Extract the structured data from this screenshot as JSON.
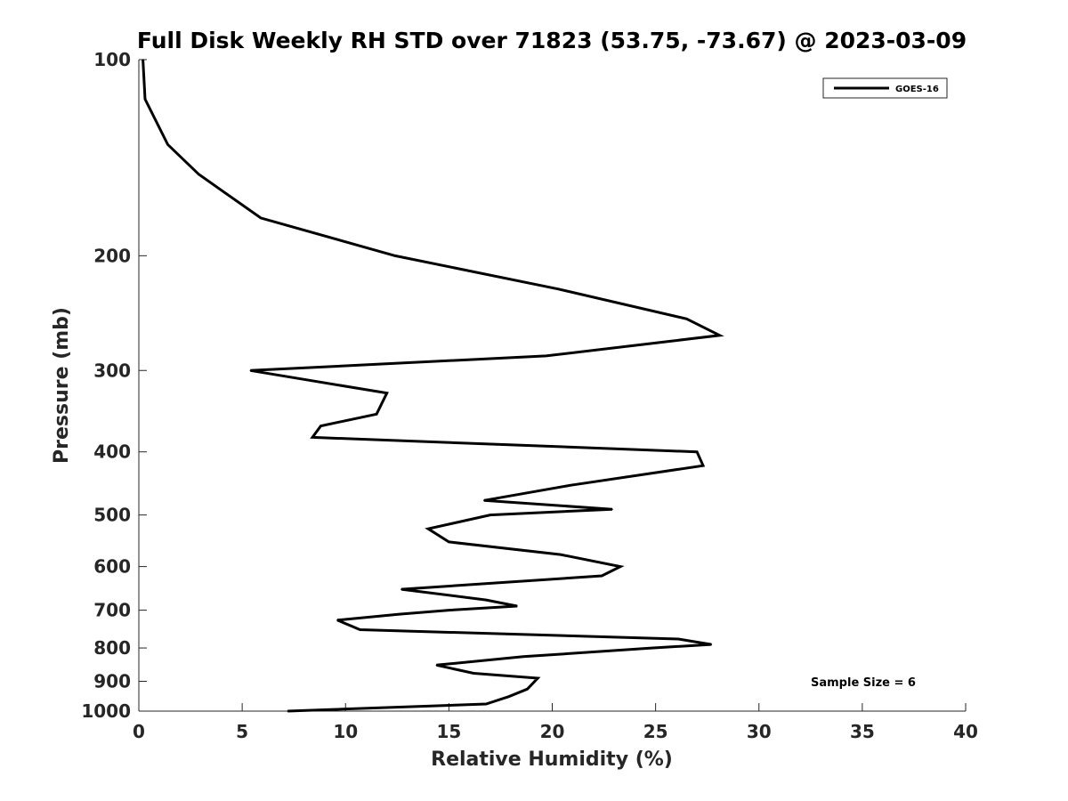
{
  "chart_data": {
    "type": "line",
    "title": "Full Disk Weekly RH STD over 71823 (53.75, -73.67) @ 2023-03-09",
    "xlabel": "Relative Humidity (%)",
    "ylabel": "Pressure (mb)",
    "xlim": [
      0,
      40
    ],
    "ylim": [
      100,
      1000
    ],
    "y_scale": "log",
    "y_reversed": true,
    "x_ticks": [
      0,
      5,
      10,
      15,
      20,
      25,
      30,
      35,
      40
    ],
    "y_ticks": [
      100,
      200,
      300,
      400,
      500,
      600,
      700,
      800,
      900,
      1000
    ],
    "grid": false,
    "legend_position": "top-right",
    "series": [
      {
        "name": "GOES-16",
        "color": "#000000",
        "x": [
          0.2,
          0.3,
          1.4,
          2.9,
          5.9,
          12.4,
          20.3,
          26.5,
          28.1,
          19.7,
          5.4,
          12.0,
          11.5,
          8.8,
          8.4,
          27.0,
          27.3,
          20.9,
          16.7,
          22.9,
          17.0,
          14.0,
          15.0,
          20.4,
          23.3,
          22.4,
          12.7,
          16.8,
          18.3,
          15.0,
          12.6,
          9.6,
          10.7,
          26.1,
          27.7,
          24.8,
          18.6,
          14.4,
          16.2,
          19.3,
          18.8,
          17.9,
          16.8,
          7.2
        ],
        "y": [
          100,
          115,
          135,
          150,
          175,
          200,
          225,
          250,
          265,
          285,
          300,
          325,
          350,
          365,
          380,
          400,
          420,
          450,
          475,
          490,
          500,
          525,
          550,
          575,
          600,
          620,
          650,
          675,
          690,
          700,
          710,
          725,
          750,
          775,
          790,
          800,
          825,
          850,
          875,
          890,
          925,
          950,
          975,
          1000
        ]
      }
    ],
    "annotations": [
      "Sample Size = 6"
    ]
  }
}
